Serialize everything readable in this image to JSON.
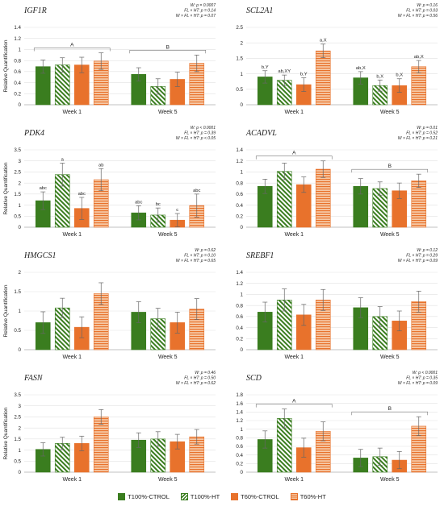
{
  "colors": {
    "green": "#3a7d1f",
    "orange": "#e8722c",
    "green_stripe_bg": "#ffffff",
    "orange_stripe_bg": "#f6c9a6",
    "axis": "#b0b0b0",
    "text": "#222222"
  },
  "legend": [
    {
      "label": "T100%-CTROL",
      "pattern": "solid-green"
    },
    {
      "label": "T100%-HT",
      "pattern": "diag-green"
    },
    {
      "label": "T60%-CTROL",
      "pattern": "solid-orange"
    },
    {
      "label": "T60%-HT",
      "pattern": "horiz-orange"
    }
  ],
  "chart_data": [
    {
      "type": "bar",
      "title": "IGF1R",
      "ylabel": "Relative Quantification",
      "categories": [
        "Week 1",
        "Week 5"
      ],
      "ylim": [
        0,
        1.4
      ],
      "yticks": [
        0,
        0.2,
        0.4,
        0.6,
        0.8,
        1,
        1.2,
        1.4
      ],
      "stats": [
        "W: p = 0.0007",
        "FL × HT: p = 0.14",
        "W × FL × HT: p = 0.07"
      ],
      "series": [
        {
          "values": [
            0.69,
            0.55
          ],
          "errors": [
            0.12,
            0.12
          ],
          "letters": [
            "",
            ""
          ]
        },
        {
          "values": [
            0.72,
            0.33
          ],
          "errors": [
            0.13,
            0.14
          ],
          "letters": [
            "",
            ""
          ]
        },
        {
          "values": [
            0.72,
            0.46
          ],
          "errors": [
            0.14,
            0.13
          ],
          "letters": [
            "",
            ""
          ]
        },
        {
          "values": [
            0.79,
            0.75
          ],
          "errors": [
            0.15,
            0.15
          ],
          "letters": [
            "",
            ""
          ]
        }
      ],
      "group_letters": [
        "A",
        "B"
      ]
    },
    {
      "type": "bar",
      "title": "SCL2A1",
      "ylabel": "",
      "categories": [
        "Week 1",
        "Week 5"
      ],
      "ylim": [
        0,
        2.5
      ],
      "yticks": [
        0,
        0.5,
        1,
        1.5,
        2,
        2.5
      ],
      "stats": [
        "W: p = 0.16",
        "FL × HT: p = 0.03",
        "W × FL × HT: p = 0.56"
      ],
      "series": [
        {
          "values": [
            0.9,
            0.87
          ],
          "errors": [
            0.2,
            0.2
          ],
          "letters": [
            "b,Y",
            "ab,X"
          ]
        },
        {
          "values": [
            0.79,
            0.62
          ],
          "errors": [
            0.17,
            0.18
          ],
          "letters": [
            "ab,XY",
            "b,X"
          ]
        },
        {
          "values": [
            0.65,
            0.62
          ],
          "errors": [
            0.22,
            0.22
          ],
          "letters": [
            "b,Y",
            "b,X"
          ]
        },
        {
          "values": [
            1.74,
            1.23
          ],
          "errors": [
            0.22,
            0.2
          ],
          "letters": [
            "a,X",
            "ab,X"
          ]
        }
      ],
      "group_letters": [
        "",
        ""
      ]
    },
    {
      "type": "bar",
      "title": "PDK4",
      "ylabel": "Relative Quantification",
      "categories": [
        "Week 1",
        "Week 5"
      ],
      "ylim": [
        0,
        3.5
      ],
      "yticks": [
        0,
        0.5,
        1,
        1.5,
        2,
        2.5,
        3,
        3.5
      ],
      "stats": [
        "W: p < 0.0001",
        "FL × HT: p = 0.39",
        "W × FL × HT: p < 0.05"
      ],
      "series": [
        {
          "values": [
            1.2,
            0.65
          ],
          "errors": [
            0.4,
            0.32
          ],
          "letters": [
            "abc",
            "abc"
          ]
        },
        {
          "values": [
            2.38,
            0.55
          ],
          "errors": [
            0.52,
            0.32
          ],
          "letters": [
            "a",
            "bc"
          ]
        },
        {
          "values": [
            0.85,
            0.32
          ],
          "errors": [
            0.5,
            0.3
          ],
          "letters": [
            "abc",
            "c"
          ]
        },
        {
          "values": [
            2.15,
            0.98
          ],
          "errors": [
            0.5,
            0.52
          ],
          "letters": [
            "ab",
            "abc"
          ]
        }
      ],
      "group_letters": [
        "",
        ""
      ]
    },
    {
      "type": "bar",
      "title": "ACADVL",
      "ylabel": "",
      "categories": [
        "Week 1",
        "Week 5"
      ],
      "ylim": [
        0,
        1.4
      ],
      "yticks": [
        0,
        0.2,
        0.4,
        0.6,
        0.8,
        1,
        1.2,
        1.4
      ],
      "stats": [
        "W: p = 0.01",
        "FL × HT: p = 0.52",
        "W × FL × HT: p = 0.21"
      ],
      "series": [
        {
          "values": [
            0.74,
            0.74
          ],
          "errors": [
            0.13,
            0.14
          ],
          "letters": [
            "",
            ""
          ]
        },
        {
          "values": [
            1.01,
            0.7
          ],
          "errors": [
            0.15,
            0.12
          ],
          "letters": [
            "",
            ""
          ]
        },
        {
          "values": [
            0.77,
            0.66
          ],
          "errors": [
            0.14,
            0.14
          ],
          "letters": [
            "",
            ""
          ]
        },
        {
          "values": [
            1.05,
            0.84
          ],
          "errors": [
            0.15,
            0.12
          ],
          "letters": [
            "",
            ""
          ]
        }
      ],
      "group_letters": [
        "A",
        "B"
      ]
    },
    {
      "type": "bar",
      "title": "HMGCS1",
      "ylabel": "Relative Quantification",
      "categories": [
        "Week 1",
        "Week 5"
      ],
      "ylim": [
        0,
        2
      ],
      "yticks": [
        0,
        0.5,
        1,
        1.5,
        2
      ],
      "stats": [
        "W: p = 0.62",
        "FL × HT: p = 0.10",
        "W × FL × HT: p = 0.65"
      ],
      "series": [
        {
          "values": [
            0.7,
            0.97
          ],
          "errors": [
            0.28,
            0.27
          ],
          "letters": [
            "",
            ""
          ]
        },
        {
          "values": [
            1.08,
            0.8
          ],
          "errors": [
            0.25,
            0.27
          ],
          "letters": [
            "",
            ""
          ]
        },
        {
          "values": [
            0.58,
            0.7
          ],
          "errors": [
            0.27,
            0.27
          ],
          "letters": [
            "",
            ""
          ]
        },
        {
          "values": [
            1.45,
            1.05
          ],
          "errors": [
            0.28,
            0.27
          ],
          "letters": [
            "",
            ""
          ]
        }
      ],
      "group_letters": [
        "",
        ""
      ]
    },
    {
      "type": "bar",
      "title": "SREBF1",
      "ylabel": "",
      "categories": [
        "Week 1",
        "Week 5"
      ],
      "ylim": [
        0,
        1.4
      ],
      "yticks": [
        0,
        0.2,
        0.4,
        0.6,
        0.8,
        1,
        1.2,
        1.4
      ],
      "stats": [
        "W: p = 0.12",
        "FL × HT: p = 0.29",
        "W × FL × HT: p = 0.09"
      ],
      "series": [
        {
          "values": [
            0.68,
            0.76
          ],
          "errors": [
            0.18,
            0.18
          ],
          "letters": [
            "",
            ""
          ]
        },
        {
          "values": [
            0.9,
            0.6
          ],
          "errors": [
            0.2,
            0.18
          ],
          "letters": [
            "",
            ""
          ]
        },
        {
          "values": [
            0.63,
            0.52
          ],
          "errors": [
            0.19,
            0.18
          ],
          "letters": [
            "",
            ""
          ]
        },
        {
          "values": [
            0.9,
            0.87
          ],
          "errors": [
            0.19,
            0.19
          ],
          "letters": [
            "",
            ""
          ]
        }
      ],
      "group_letters": [
        "",
        ""
      ]
    },
    {
      "type": "bar",
      "title": "FASN",
      "ylabel": "Relative Quantification",
      "categories": [
        "Week 1",
        "Week 5"
      ],
      "ylim": [
        0,
        3.5
      ],
      "yticks": [
        0,
        0.5,
        1,
        1.5,
        2,
        2.5,
        3,
        3.5
      ],
      "stats": [
        "W: p = 0.46",
        "FL × HT: p = 0.50",
        "W × FL × HT: p = 0.62"
      ],
      "series": [
        {
          "values": [
            1.03,
            1.45
          ],
          "errors": [
            0.3,
            0.33
          ],
          "letters": [
            "",
            ""
          ]
        },
        {
          "values": [
            1.3,
            1.5
          ],
          "errors": [
            0.28,
            0.33
          ],
          "letters": [
            "",
            ""
          ]
        },
        {
          "values": [
            1.3,
            1.38
          ],
          "errors": [
            0.33,
            0.33
          ],
          "letters": [
            "",
            ""
          ]
        },
        {
          "values": [
            2.5,
            1.6
          ],
          "errors": [
            0.33,
            0.33
          ],
          "letters": [
            "",
            ""
          ]
        }
      ],
      "group_letters": [
        "",
        ""
      ]
    },
    {
      "type": "bar",
      "title": "SCD",
      "ylabel": "",
      "categories": [
        "Week 1",
        "Week 5"
      ],
      "ylim": [
        0,
        1.8
      ],
      "yticks": [
        0,
        0.2,
        0.4,
        0.6,
        0.8,
        1,
        1.2,
        1.4,
        1.6,
        1.8
      ],
      "stats": [
        "W: p < 0.0001",
        "FL × HT: p = 0.35",
        "W × FL × HT: p = 0.09"
      ],
      "series": [
        {
          "values": [
            0.76,
            0.33
          ],
          "errors": [
            0.2,
            0.2
          ],
          "letters": [
            "",
            ""
          ]
        },
        {
          "values": [
            1.25,
            0.36
          ],
          "errors": [
            0.22,
            0.2
          ],
          "letters": [
            "",
            ""
          ]
        },
        {
          "values": [
            0.57,
            0.28
          ],
          "errors": [
            0.22,
            0.2
          ],
          "letters": [
            "",
            ""
          ]
        },
        {
          "values": [
            0.95,
            1.07
          ],
          "errors": [
            0.22,
            0.22
          ],
          "letters": [
            "",
            ""
          ]
        }
      ],
      "group_letters": [
        "A",
        "B"
      ]
    }
  ]
}
